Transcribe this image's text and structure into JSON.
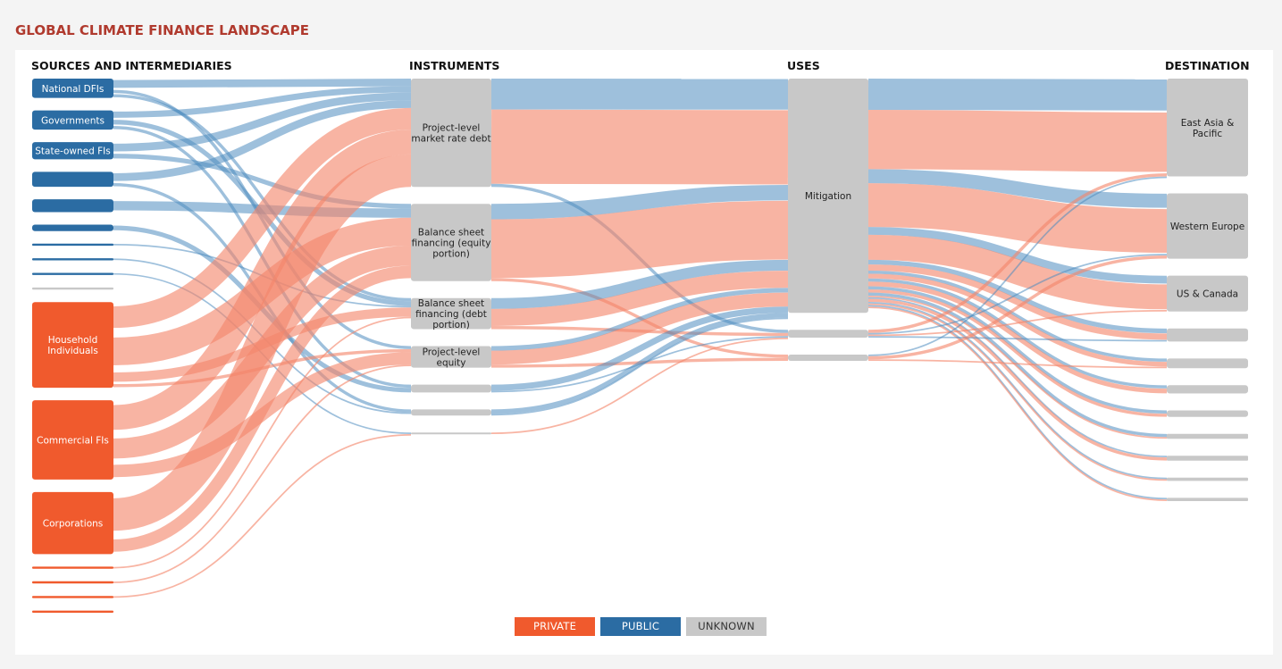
{
  "title": "GLOBAL CLIMATE FINANCE LANDSCAPE",
  "columns": {
    "sources": "SOURCES AND INTERMEDIARIES",
    "instruments": "INSTRUMENTS",
    "uses": "USES",
    "destination": "DESTINATION"
  },
  "colors": {
    "private": "#f05a2d",
    "public": "#2b6ca3",
    "unknown": "#c8c8c8",
    "private_link": "#f4866a",
    "public_link": "#4f8dc0"
  },
  "legend": [
    {
      "label": "PRIVATE",
      "category": "private"
    },
    {
      "label": "PUBLIC",
      "category": "public"
    },
    {
      "label": "UNKNOWN",
      "category": "unknown"
    }
  ],
  "nodes": {
    "sources": [
      {
        "label": "National DFIs",
        "category": "public",
        "value": 9
      },
      {
        "label": "Governments",
        "category": "public",
        "value": 9
      },
      {
        "label": "State-owned FIs",
        "category": "public",
        "value": 8
      },
      {
        "label": "",
        "category": "public",
        "value": 7
      },
      {
        "label": "",
        "category": "public",
        "value": 6
      },
      {
        "label": "",
        "category": "public",
        "value": 3
      },
      {
        "label": "",
        "category": "public",
        "value": 1
      },
      {
        "label": "",
        "category": "public",
        "value": 1
      },
      {
        "label": "",
        "category": "public",
        "value": 1
      },
      {
        "label": "",
        "category": "unknown",
        "value": 1
      },
      {
        "label": "Household Individuals",
        "category": "private",
        "value": 40
      },
      {
        "label": "Commercial FIs",
        "category": "private",
        "value": 37
      },
      {
        "label": "Corporations",
        "category": "private",
        "value": 29
      },
      {
        "label": "",
        "category": "private",
        "value": 1
      },
      {
        "label": "",
        "category": "private",
        "value": 1
      },
      {
        "label": "",
        "category": "private",
        "value": 1
      },
      {
        "label": "",
        "category": "private",
        "value": 1
      }
    ],
    "instruments": [
      {
        "label": "Project-level market rate debt",
        "category": "unknown",
        "value": 70
      },
      {
        "label": "Balance sheet financing (equity portion)",
        "category": "unknown",
        "value": 50
      },
      {
        "label": "Balance sheet financing (debt portion)",
        "category": "unknown",
        "value": 20
      },
      {
        "label": "Project-level equity",
        "category": "unknown",
        "value": 14
      },
      {
        "label": "",
        "category": "unknown",
        "value": 5
      },
      {
        "label": "",
        "category": "unknown",
        "value": 4
      },
      {
        "label": "",
        "category": "unknown",
        "value": 1
      }
    ],
    "uses": [
      {
        "label": "Mitigation",
        "category": "unknown",
        "value": 150
      },
      {
        "label": "",
        "category": "unknown",
        "value": 5
      },
      {
        "label": "",
        "category": "unknown",
        "value": 4
      }
    ],
    "destinations": [
      {
        "label": "East Asia & Pacific",
        "category": "unknown",
        "value": 60
      },
      {
        "label": "Western Europe",
        "category": "unknown",
        "value": 40
      },
      {
        "label": "US & Canada",
        "category": "unknown",
        "value": 22
      },
      {
        "label": "",
        "category": "unknown",
        "value": 8
      },
      {
        "label": "",
        "category": "unknown",
        "value": 6
      },
      {
        "label": "",
        "category": "unknown",
        "value": 5
      },
      {
        "label": "",
        "category": "unknown",
        "value": 4
      },
      {
        "label": "",
        "category": "unknown",
        "value": 3
      },
      {
        "label": "",
        "category": "unknown",
        "value": 3
      },
      {
        "label": "",
        "category": "unknown",
        "value": 2
      },
      {
        "label": "",
        "category": "unknown",
        "value": 2
      }
    ]
  },
  "links": {
    "source_to_instrument": [
      [
        0,
        0,
        5,
        "public"
      ],
      [
        0,
        3,
        2,
        "public"
      ],
      [
        0,
        2,
        2,
        "public"
      ],
      [
        1,
        0,
        4,
        "public"
      ],
      [
        1,
        2,
        3,
        "public"
      ],
      [
        1,
        4,
        2,
        "public"
      ],
      [
        2,
        0,
        5,
        "public"
      ],
      [
        2,
        1,
        3,
        "public"
      ],
      [
        3,
        0,
        5,
        "public"
      ],
      [
        3,
        5,
        2,
        "public"
      ],
      [
        4,
        1,
        6,
        "public"
      ],
      [
        5,
        4,
        3,
        "public"
      ],
      [
        6,
        2,
        1,
        "public"
      ],
      [
        7,
        5,
        1,
        "public"
      ],
      [
        8,
        6,
        1,
        "public"
      ],
      [
        10,
        0,
        14,
        "private"
      ],
      [
        10,
        1,
        18,
        "private"
      ],
      [
        10,
        2,
        6,
        "private"
      ],
      [
        10,
        3,
        2,
        "private"
      ],
      [
        11,
        0,
        16,
        "private"
      ],
      [
        11,
        1,
        13,
        "private"
      ],
      [
        11,
        3,
        8,
        "private"
      ],
      [
        12,
        0,
        21,
        "private"
      ],
      [
        12,
        1,
        8,
        "private"
      ],
      [
        13,
        2,
        1,
        "private"
      ],
      [
        14,
        3,
        1,
        "private"
      ],
      [
        15,
        6,
        1,
        "private"
      ]
    ],
    "instrument_to_use": [
      [
        0,
        0,
        20,
        "public"
      ],
      [
        0,
        0,
        48,
        "private"
      ],
      [
        0,
        1,
        2,
        "public"
      ],
      [
        1,
        0,
        10,
        "public"
      ],
      [
        1,
        0,
        38,
        "private"
      ],
      [
        1,
        2,
        2,
        "private"
      ],
      [
        2,
        0,
        7,
        "public"
      ],
      [
        2,
        0,
        11,
        "private"
      ],
      [
        2,
        1,
        2,
        "private"
      ],
      [
        3,
        0,
        3,
        "public"
      ],
      [
        3,
        0,
        9,
        "private"
      ],
      [
        3,
        2,
        2,
        "private"
      ],
      [
        4,
        0,
        4,
        "public"
      ],
      [
        4,
        1,
        1,
        "public"
      ],
      [
        5,
        0,
        3,
        "public"
      ],
      [
        5,
        0,
        1,
        "public"
      ],
      [
        6,
        1,
        1,
        "private"
      ]
    ],
    "use_to_destination": [
      [
        0,
        0,
        20,
        "public"
      ],
      [
        0,
        0,
        38,
        "private"
      ],
      [
        0,
        1,
        9,
        "public"
      ],
      [
        0,
        1,
        28,
        "private"
      ],
      [
        0,
        2,
        5,
        "public"
      ],
      [
        0,
        2,
        16,
        "private"
      ],
      [
        0,
        3,
        3,
        "public"
      ],
      [
        0,
        3,
        4,
        "private"
      ],
      [
        0,
        4,
        2,
        "public"
      ],
      [
        0,
        4,
        3,
        "private"
      ],
      [
        0,
        5,
        2,
        "public"
      ],
      [
        0,
        5,
        3,
        "private"
      ],
      [
        0,
        6,
        2,
        "public"
      ],
      [
        0,
        6,
        2,
        "private"
      ],
      [
        0,
        7,
        2,
        "public"
      ],
      [
        0,
        7,
        1,
        "private"
      ],
      [
        0,
        8,
        1,
        "public"
      ],
      [
        0,
        8,
        2,
        "private"
      ],
      [
        0,
        9,
        1,
        "public"
      ],
      [
        0,
        9,
        1,
        "private"
      ],
      [
        0,
        10,
        1,
        "public"
      ],
      [
        0,
        10,
        1,
        "private"
      ],
      [
        1,
        0,
        2,
        "private"
      ],
      [
        1,
        1,
        1,
        "public"
      ],
      [
        1,
        2,
        1,
        "private"
      ],
      [
        1,
        3,
        1,
        "public"
      ],
      [
        2,
        0,
        1,
        "public"
      ],
      [
        2,
        1,
        2,
        "private"
      ],
      [
        2,
        4,
        1,
        "private"
      ]
    ]
  }
}
